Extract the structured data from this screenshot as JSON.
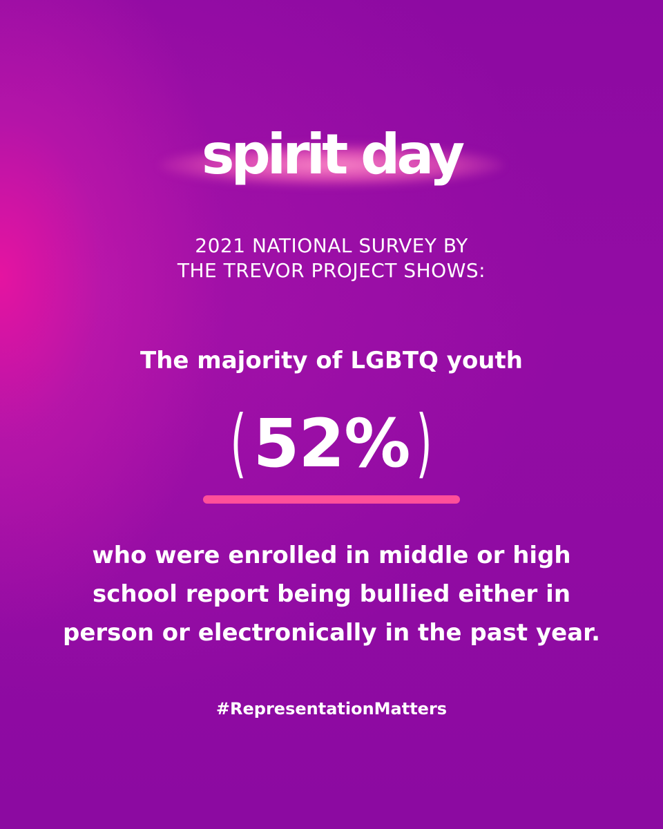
{
  "logo": {
    "text": "spirit day"
  },
  "survey": {
    "line1": "2021 NATIONAL SURVEY BY",
    "line2": "THE TREVOR PROJECT SHOWS:"
  },
  "headline": "The majority of LGBTQ youth",
  "statistic": {
    "open": "(",
    "value": "52%",
    "close": ")"
  },
  "body": {
    "line1": "who were enrolled in middle or high",
    "line2": "school report being bullied either in",
    "line3": "person or electronically in the past year."
  },
  "hashtag": "#RepresentationMatters",
  "colors": {
    "background": "#8d0aa2",
    "glow": "#e8148f",
    "accent_underline": "#ff4f9a",
    "text": "#ffffff"
  }
}
